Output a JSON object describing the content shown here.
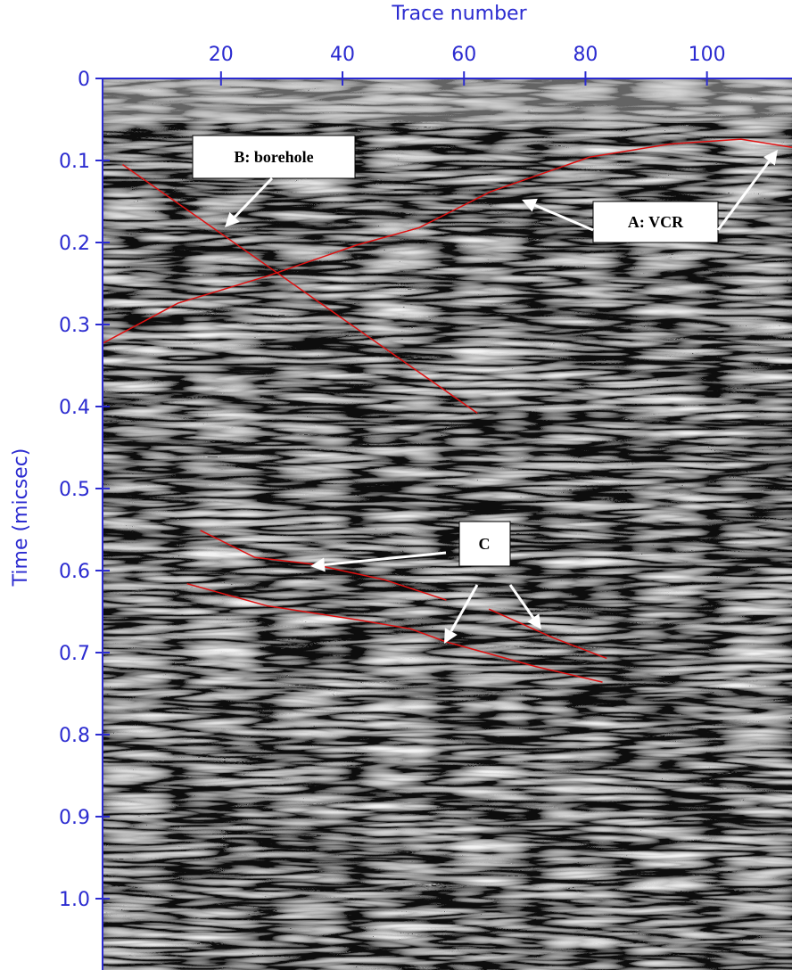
{
  "chart_data": {
    "type": "line",
    "x_label": "Trace number",
    "y_label": "Time (micsec)",
    "xlim": [
      0.5,
      114
    ],
    "xticks": [
      20,
      40,
      60,
      80,
      100
    ],
    "ylim": [
      0,
      1.087
    ],
    "y_inverted": true,
    "yticks": [
      0,
      0.1,
      0.2,
      0.3,
      0.4,
      0.5,
      0.6,
      0.7,
      0.8,
      0.9,
      {
        "value": 1,
        "label": "1.0"
      }
    ],
    "axis_color": "#2b2bd0",
    "series": [
      {
        "color": "#e01010",
        "x": [
          0.5,
          12.9,
          27.6,
          42.4,
          52.6,
          64.4,
          79.1,
          80.6,
          93.8,
          105.6,
          114
        ],
        "values": [
          0.323,
          0.274,
          0.241,
          0.203,
          0.182,
          0.138,
          0.1,
          0.096,
          0.08,
          0.074,
          0.084
        ]
      },
      {
        "color": "#e01010",
        "x": [
          3.8,
          62.2
        ],
        "values": [
          0.105,
          0.408
        ]
      },
      {
        "color": "#e01010",
        "x": [
          16.6,
          25.6,
          34.9,
          46.8,
          57.1,
          60.6,
          64.1,
          74.7,
          83.5
        ],
        "values": [
          0.551,
          0.584,
          0.592,
          0.611,
          0.636,
          null,
          0.647,
          0.682,
          0.707
        ]
      },
      {
        "color": "#e01010",
        "x": [
          14.4,
          27.6,
          42.4,
          51.2,
          57.1,
          71.8,
          82.8
        ],
        "values": [
          0.616,
          0.643,
          0.66,
          0.671,
          0.687,
          0.717,
          0.736
        ]
      }
    ],
    "annotations": [
      "B: borehole",
      "A: VCR",
      "C"
    ]
  }
}
